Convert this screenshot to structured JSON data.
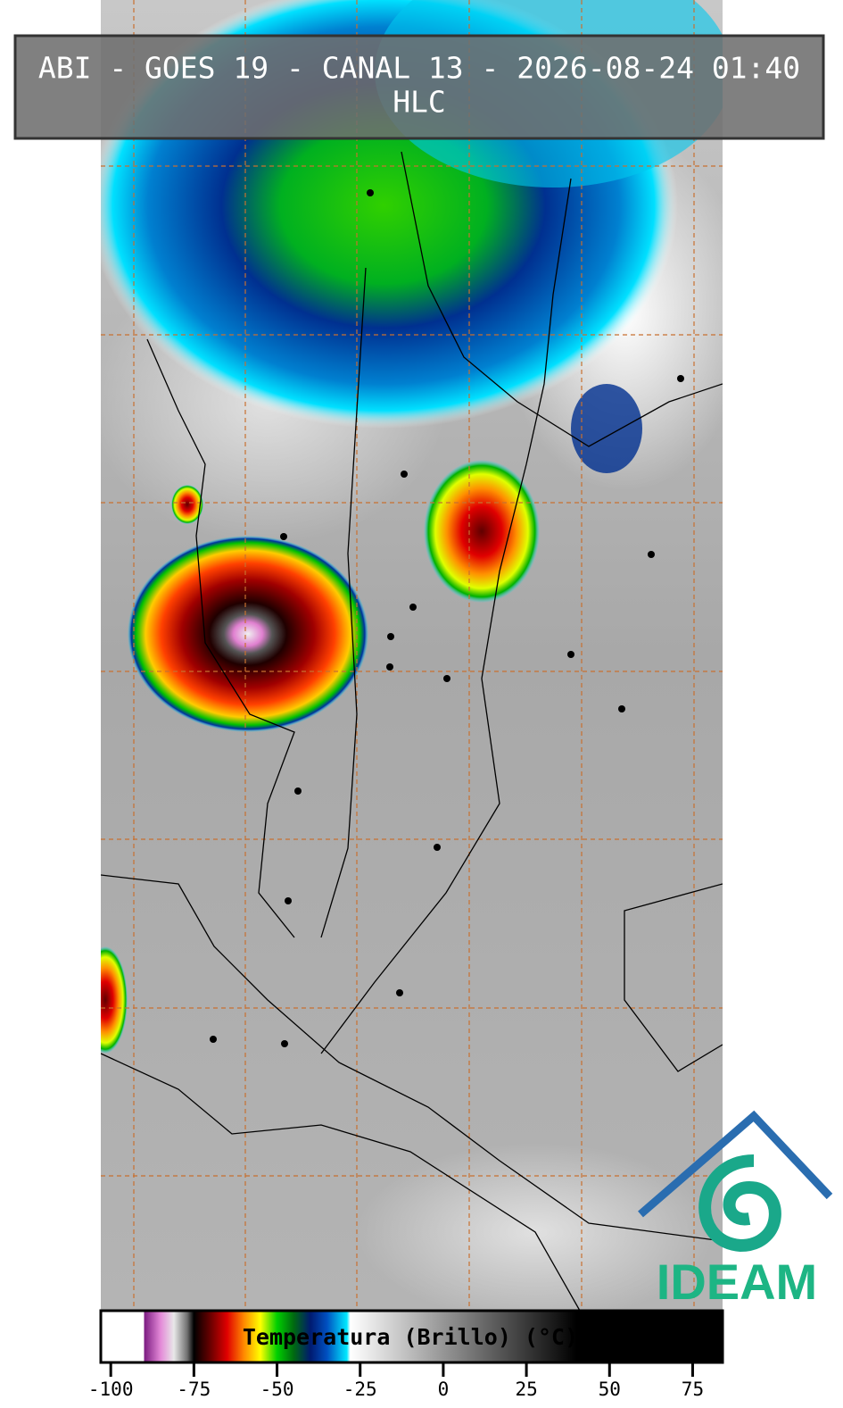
{
  "title": "ABI - GOES 19 - CANAL 13 - 2026-08-24 01:40",
  "subtitle": "HLC",
  "colorbar": {
    "label": "Temperatura (Brillo) (°C)",
    "lim": [
      -103,
      84
    ],
    "ticks": [
      -100,
      -75,
      -50,
      -25,
      0,
      25,
      50,
      75
    ],
    "stops": [
      {
        "value": -103,
        "color": "#ffffff"
      },
      {
        "value": -90,
        "color": "#ffffff"
      },
      {
        "value": -90,
        "color": "#7a1a80"
      },
      {
        "value": -85,
        "color": "#e48ad8"
      },
      {
        "value": -81,
        "color": "#e8e8e8"
      },
      {
        "value": -77,
        "color": "#707070"
      },
      {
        "value": -75,
        "color": "#000000"
      },
      {
        "value": -70,
        "color": "#6a0000"
      },
      {
        "value": -65,
        "color": "#e00000"
      },
      {
        "value": -60,
        "color": "#ff8800"
      },
      {
        "value": -55,
        "color": "#ffff00"
      },
      {
        "value": -50,
        "color": "#00d000"
      },
      {
        "value": -45,
        "color": "#006a10"
      },
      {
        "value": -40,
        "color": "#001a70"
      },
      {
        "value": -35,
        "color": "#0050c0"
      },
      {
        "value": -29,
        "color": "#00e8ff"
      },
      {
        "value": -28,
        "color": "#ffffff"
      },
      {
        "value": 40,
        "color": "#000000"
      },
      {
        "value": 84,
        "color": "#000000"
      }
    ]
  },
  "logo": "IDEAM"
}
